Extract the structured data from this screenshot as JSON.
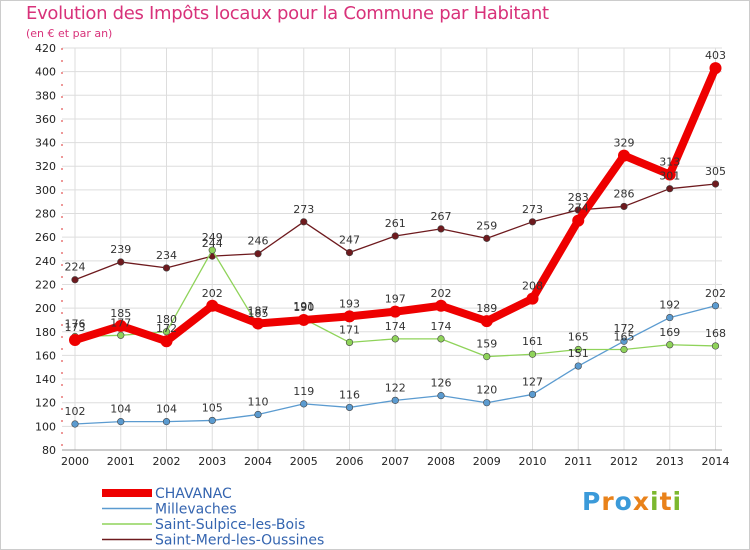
{
  "header": {
    "title": "Evolution des Impôts locaux pour la Commune par Habitant",
    "subtitle": "(en € et par an)"
  },
  "logo": {
    "letters": [
      "P",
      "r",
      "o",
      "x",
      "i",
      "t",
      "i"
    ],
    "colors": [
      "#3b9ad9",
      "#e9821a",
      "#3b9ad9",
      "#e9821a",
      "#7cb82f",
      "#e9821a",
      "#7cb82f"
    ]
  },
  "chart_data": {
    "type": "line",
    "title": "Evolution des Impôts locaux pour la Commune par Habitant",
    "subtitle": "(en € et par an)",
    "xlabel": "",
    "ylabel": "",
    "ylim": [
      80,
      420
    ],
    "ytick_step": 20,
    "grid": true,
    "legend_position": "bottom-left",
    "categories": [
      "2000",
      "2001",
      "2002",
      "2003",
      "2004",
      "2005",
      "2006",
      "2007",
      "2008",
      "2009",
      "2010",
      "2011",
      "2012",
      "2013",
      "2014"
    ],
    "series": [
      {
        "name": "Saint-Merd-les-Oussines",
        "color": "#6e1a1e",
        "values": [
          224,
          239,
          234,
          244,
          246,
          273,
          247,
          261,
          267,
          259,
          273,
          283,
          286,
          301,
          305
        ],
        "labels": [
          "224",
          "239",
          "234",
          "244",
          "246",
          "273",
          "247",
          "261",
          "267",
          "259",
          "273",
          "283",
          "286",
          "301",
          "305"
        ]
      },
      {
        "name": "Millevaches",
        "color": "#5b9bd0",
        "values": [
          102,
          104,
          104,
          105,
          110,
          119,
          116,
          122,
          126,
          120,
          127,
          151,
          172,
          192,
          202
        ],
        "labels": [
          "102",
          "104",
          "104",
          "105",
          "110",
          "119",
          "116",
          "122",
          "126",
          "120",
          "127",
          "151",
          "172",
          "192",
          "202"
        ]
      },
      {
        "name": "Saint-Sulpice-les-Bois",
        "color": "#8fd35a",
        "values": [
          176,
          177,
          180,
          249,
          185,
          191,
          171,
          174,
          174,
          159,
          161,
          165,
          165,
          169,
          168
        ],
        "labels": [
          "176",
          "177",
          "180",
          "249",
          "185",
          "191",
          "171",
          "174",
          "174",
          "159",
          "161",
          "165",
          "165",
          "169",
          "168"
        ]
      },
      {
        "name": "CHAVANAC",
        "color": "#ee0000",
        "values": [
          173,
          185,
          172,
          202,
          187,
          190,
          193,
          197,
          202,
          189,
          208,
          274,
          329,
          313,
          403
        ],
        "labels": [
          "173",
          "185",
          "172",
          "202",
          "187",
          "190",
          "193",
          "197",
          "202",
          "189",
          "208",
          "274",
          "329",
          "313",
          "403"
        ]
      }
    ]
  }
}
